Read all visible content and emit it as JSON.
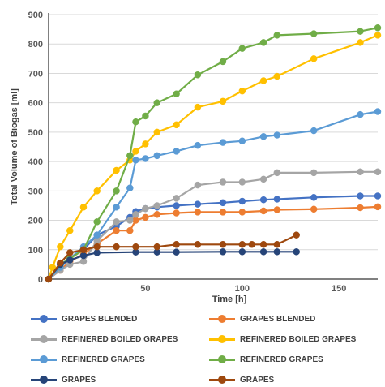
{
  "chart_data": {
    "type": "line",
    "title": "",
    "xlabel": "Time [h]",
    "ylabel": "Total Volume of Biogas [ml]",
    "xlim": [
      0,
      170
    ],
    "ylim": [
      0,
      900
    ],
    "xticks": [
      50,
      100,
      150
    ],
    "yticks": [
      0,
      100,
      200,
      300,
      400,
      500,
      600,
      700,
      800,
      900
    ],
    "grid": "horizontal",
    "legend_position": "bottom",
    "series": [
      {
        "name": "GRAPES BLENDED",
        "color": "#4472C4",
        "x": [
          0,
          6,
          11,
          18,
          25,
          35,
          42,
          45,
          50,
          56,
          66,
          77,
          90,
          100,
          111,
          118,
          137,
          161,
          170
        ],
        "y": [
          0,
          40,
          70,
          100,
          150,
          180,
          210,
          230,
          240,
          245,
          250,
          255,
          260,
          265,
          270,
          272,
          278,
          283,
          283
        ]
      },
      {
        "name": "GRAPES BLENDED",
        "color": "#ED7D31",
        "x": [
          0,
          6,
          11,
          18,
          25,
          35,
          42,
          45,
          50,
          56,
          66,
          77,
          90,
          100,
          111,
          118,
          137,
          161,
          170
        ],
        "y": [
          0,
          30,
          60,
          85,
          120,
          165,
          165,
          200,
          210,
          220,
          225,
          228,
          228,
          228,
          232,
          236,
          238,
          243,
          246
        ]
      },
      {
        "name": "REFINERED BOILED GRAPES",
        "color": "#A5A5A5",
        "x": [
          0,
          6,
          11,
          18,
          25,
          35,
          42,
          45,
          50,
          56,
          66,
          77,
          90,
          100,
          111,
          118,
          137,
          161,
          170
        ],
        "y": [
          0,
          30,
          50,
          60,
          130,
          195,
          200,
          220,
          240,
          250,
          275,
          320,
          330,
          330,
          340,
          362,
          362,
          365,
          365
        ]
      },
      {
        "name": "REFINERED BOILED GRAPES",
        "color": "#FFC000",
        "x": [
          0,
          2,
          6,
          11,
          18,
          25,
          35,
          42,
          45,
          50,
          56,
          66,
          77,
          90,
          100,
          111,
          118,
          137,
          161,
          170
        ],
        "y": [
          0,
          40,
          110,
          165,
          245,
          300,
          370,
          405,
          435,
          460,
          500,
          525,
          585,
          605,
          640,
          675,
          690,
          750,
          805,
          830
        ]
      },
      {
        "name": "REFINERED GRAPES",
        "color": "#5B9BD5",
        "x": [
          0,
          6,
          11,
          18,
          25,
          35,
          42,
          45,
          50,
          56,
          66,
          77,
          90,
          100,
          111,
          118,
          137,
          161,
          170
        ],
        "y": [
          0,
          40,
          70,
          110,
          150,
          245,
          310,
          405,
          410,
          420,
          435,
          455,
          465,
          470,
          485,
          490,
          505,
          560,
          570
        ]
      },
      {
        "name": "REFINERED GRAPES",
        "color": "#70AD47",
        "x": [
          0,
          6,
          11,
          18,
          25,
          35,
          42,
          45,
          50,
          56,
          66,
          77,
          90,
          100,
          111,
          118,
          137,
          161,
          170
        ],
        "y": [
          0,
          50,
          70,
          100,
          195,
          300,
          420,
          535,
          555,
          600,
          630,
          695,
          740,
          785,
          805,
          830,
          835,
          843,
          855
        ]
      },
      {
        "name": "GRAPES",
        "color": "#264478",
        "x": [
          0,
          6,
          11,
          18,
          25,
          45,
          56,
          66,
          90,
          100,
          111,
          118,
          128
        ],
        "y": [
          0,
          50,
          65,
          80,
          90,
          92,
          92,
          92,
          93,
          93,
          93,
          93,
          93
        ]
      },
      {
        "name": "GRAPES",
        "color": "#9E480E",
        "x": [
          0,
          6,
          11,
          18,
          25,
          35,
          45,
          56,
          66,
          77,
          90,
          100,
          105,
          111,
          118,
          128
        ],
        "y": [
          0,
          55,
          90,
          100,
          110,
          110,
          110,
          110,
          118,
          118,
          118,
          118,
          118,
          118,
          118,
          150
        ]
      }
    ]
  }
}
